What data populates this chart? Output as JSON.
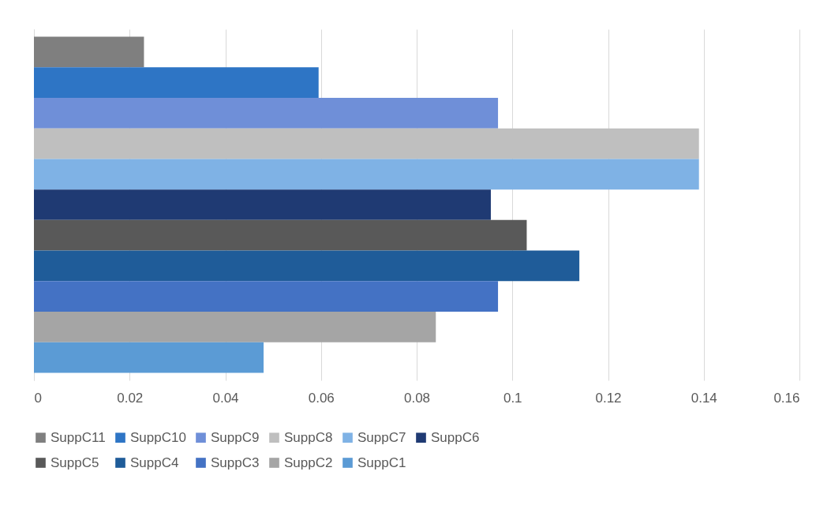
{
  "chart_data": {
    "type": "bar",
    "orientation": "horizontal",
    "categories": [
      null
    ],
    "series": [
      {
        "name": "SuppC11",
        "color": "#7f7f7f",
        "values": [
          0.023
        ]
      },
      {
        "name": "SuppC10",
        "color": "#2e75c5",
        "values": [
          0.0595
        ]
      },
      {
        "name": "SuppC9",
        "color": "#6f8fd8",
        "values": [
          0.097
        ]
      },
      {
        "name": "SuppC8",
        "color": "#bfbfbf",
        "values": [
          0.139
        ]
      },
      {
        "name": "SuppC7",
        "color": "#7fb2e5",
        "values": [
          0.139
        ]
      },
      {
        "name": "SuppC6",
        "color": "#1f3a73",
        "values": [
          0.0955
        ]
      },
      {
        "name": "SuppC5",
        "color": "#595959",
        "values": [
          0.103
        ]
      },
      {
        "name": "SuppC4",
        "color": "#1f5c99",
        "values": [
          0.114
        ]
      },
      {
        "name": "SuppC3",
        "color": "#4472c4",
        "values": [
          0.097
        ]
      },
      {
        "name": "SuppC2",
        "color": "#a5a5a5",
        "values": [
          0.084
        ]
      },
      {
        "name": "SuppC1",
        "color": "#5b9bd5",
        "values": [
          0.048
        ]
      }
    ],
    "xlim": [
      0,
      0.16
    ],
    "xticks": [
      0,
      0.02,
      0.04,
      0.06,
      0.08,
      0.1,
      0.12,
      0.14,
      0.16
    ],
    "grid": "x",
    "legend": "bottom",
    "tick_labels": "x"
  }
}
